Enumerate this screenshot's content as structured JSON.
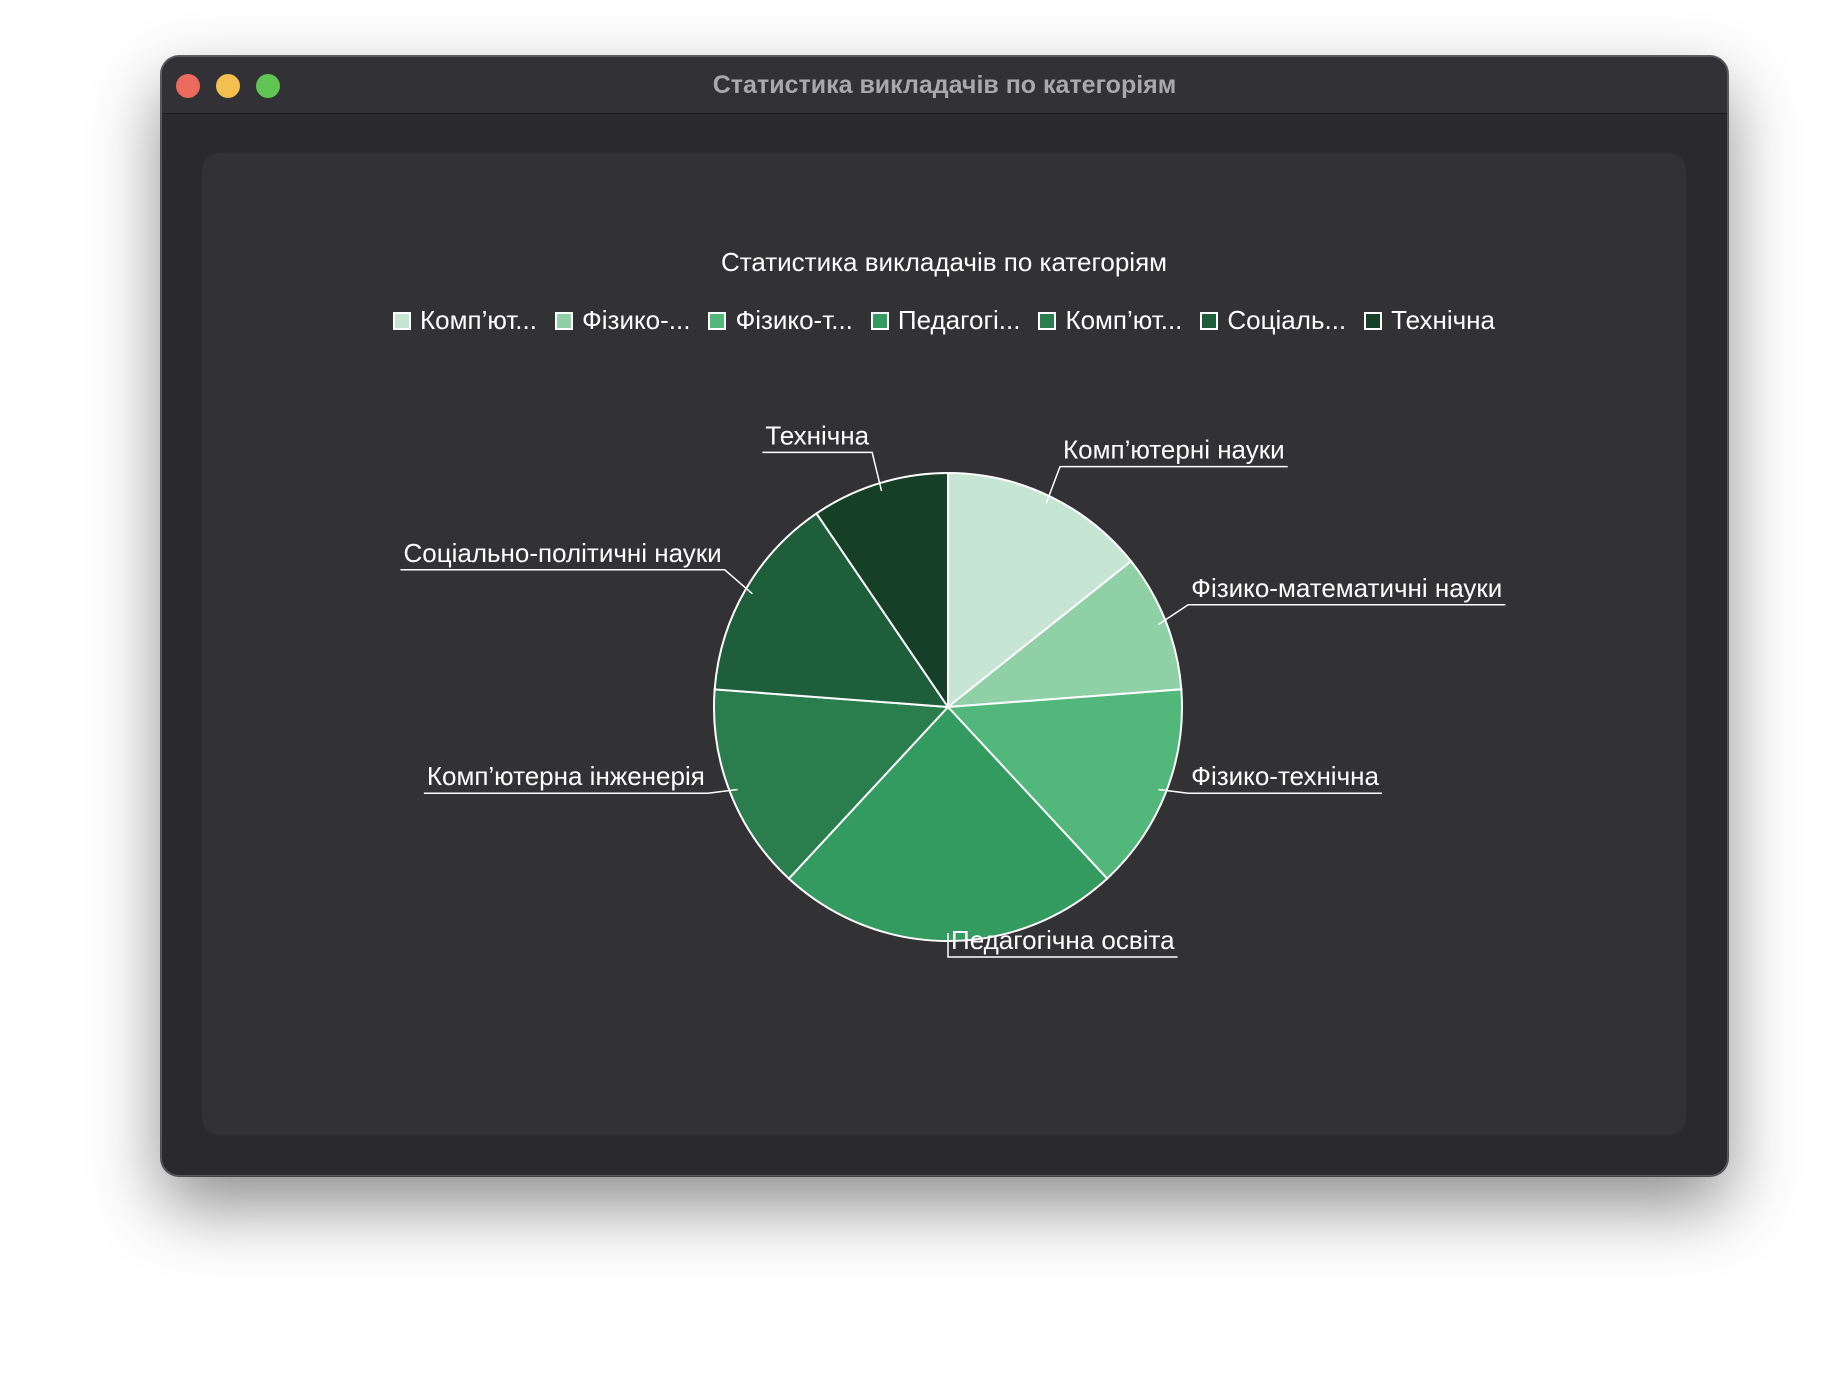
{
  "window": {
    "title": "Статистика викладачів по категоріям"
  },
  "chart_data": {
    "type": "pie",
    "title": "Статистика викладачів по категоріям",
    "legend_position": "top",
    "legend": [
      "Комп’ют...",
      "Фізико-...",
      "Фізико-т...",
      "Педагогі...",
      "Комп’ют...",
      "Соціаль...",
      "Технічна"
    ],
    "slices": [
      {
        "label": "Комп’ютерні науки",
        "value": 14.3,
        "color": "#c6e6d3"
      },
      {
        "label": "Фізико-математичні науки",
        "value": 9.5,
        "color": "#8fd0a7"
      },
      {
        "label": "Фізико-технічна",
        "value": 14.3,
        "color": "#52b77b"
      },
      {
        "label": "Педагогічна освіта",
        "value": 23.8,
        "color": "#339b5f"
      },
      {
        "label": "Комп’ютерна інженерія",
        "value": 14.3,
        "color": "#2a7e4d"
      },
      {
        "label": "Соціально-політичні науки",
        "value": 14.3,
        "color": "#1f5e3b"
      },
      {
        "label": "Технічна",
        "value": 9.5,
        "color": "#163f28"
      }
    ]
  }
}
